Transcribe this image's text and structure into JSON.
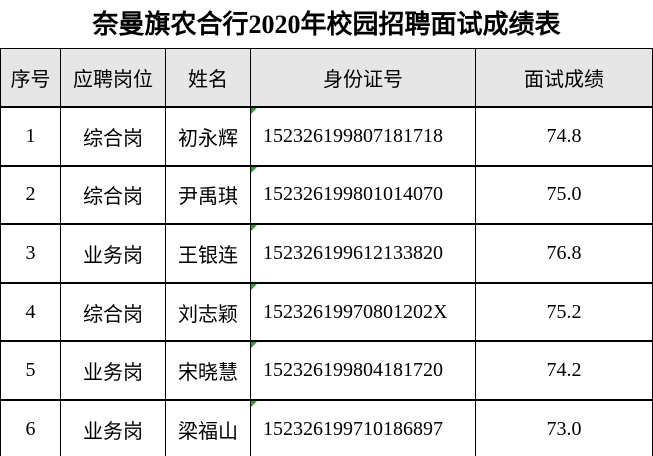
{
  "title": "奈曼旗农合行2020年校园招聘面试成绩表",
  "table": {
    "header": [
      "序号",
      "应聘岗位",
      "姓名",
      "身份证号",
      "面试成绩"
    ],
    "rows": [
      [
        "1",
        "综合岗",
        "初永辉",
        "152326199807181718",
        "74.8"
      ],
      [
        "2",
        "综合岗",
        "尹禹琪",
        "152326199801014070",
        "75.0"
      ],
      [
        "3",
        "业务岗",
        "王银连",
        "152326199612133820",
        "76.8"
      ],
      [
        "4",
        "综合岗",
        "刘志颖",
        "15232619970801202X",
        "75.2"
      ],
      [
        "5",
        "业务岗",
        "宋晓慧",
        "152326199804181720",
        "74.2"
      ],
      [
        "6",
        "业务岗",
        "梁福山",
        "152326199710186897",
        "73.0"
      ]
    ]
  }
}
